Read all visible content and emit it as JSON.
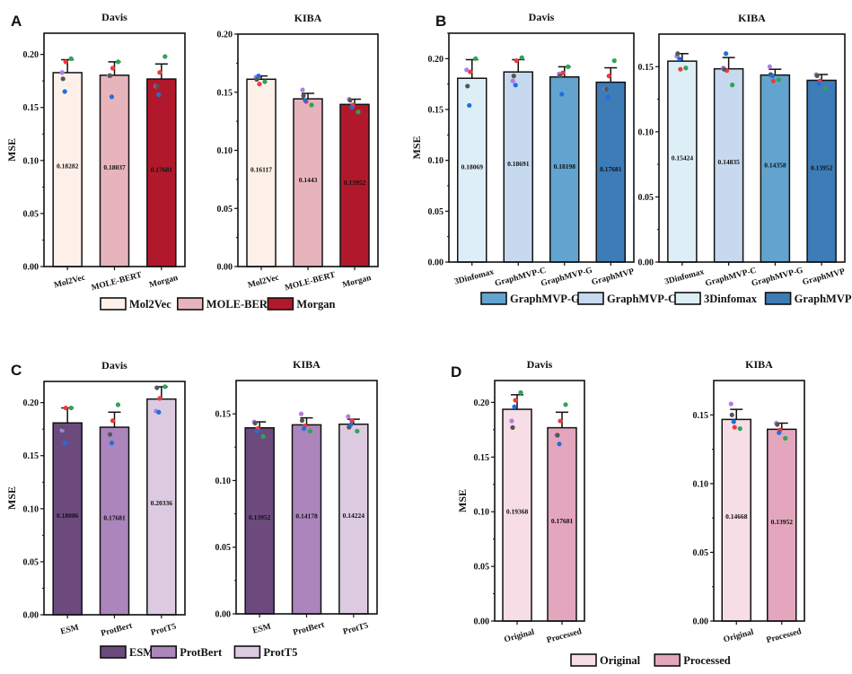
{
  "panel_letters": [
    "A",
    "B",
    "C",
    "D"
  ],
  "point_colors": [
    "#2ea35a",
    "#f03a3a",
    "#b07ee0",
    "#555555",
    "#1f6fe0"
  ],
  "chart_data": [
    {
      "type": "bar",
      "panel": "A",
      "title": "Davis",
      "ylabel": "MSE",
      "ylim": [
        0,
        0.22
      ],
      "yticks": [
        "0.00",
        "0.05",
        "0.10",
        "0.15",
        "0.20"
      ],
      "categories": [
        "Mol2Vec",
        "MOLE-BERT",
        "Morgan"
      ],
      "values": [
        0.18282,
        0.18037,
        0.17681
      ],
      "labels": [
        "0.18282",
        "0.18037",
        "0.17681"
      ],
      "error_upper": [
        0.195,
        0.193,
        0.191
      ],
      "colors": [
        "#fdf0e9",
        "#e8b4bc",
        "#b2182b"
      ],
      "points": [
        [
          0.196,
          0.193,
          0.183,
          0.177,
          0.165
        ],
        [
          0.193,
          0.187,
          0.18,
          0.18,
          0.16
        ],
        [
          0.198,
          0.183,
          0.17,
          0.17,
          0.162
        ]
      ]
    },
    {
      "type": "bar",
      "panel": "A",
      "title": "KIBA",
      "ylabel": "",
      "ylim": [
        0,
        0.2
      ],
      "yticks": [
        "0.00",
        "0.05",
        "0.10",
        "0.15",
        "0.20"
      ],
      "categories": [
        "Mol2Vec",
        "MOLE-BERT",
        "Morgan"
      ],
      "values": [
        0.16117,
        0.1443,
        0.13952
      ],
      "labels": [
        "0.16117",
        "0.1443",
        "0.13952"
      ],
      "error_upper": [
        0.164,
        0.149,
        0.144
      ],
      "colors": [
        "#fdf0e9",
        "#e8b4bc",
        "#b2182b"
      ],
      "points": [
        [
          0.159,
          0.157,
          0.163,
          0.161,
          0.164
        ],
        [
          0.139,
          0.142,
          0.152,
          0.147,
          0.143
        ],
        [
          0.133,
          0.139,
          0.144,
          0.143,
          0.137
        ]
      ]
    },
    {
      "type": "bar",
      "panel": "B",
      "title": "Davis",
      "ylabel": "MSE",
      "ylim": [
        0,
        0.225
      ],
      "yticks": [
        "0.00",
        "0.05",
        "0.10",
        "0.15",
        "0.20"
      ],
      "categories": [
        "3Dinfomax",
        "GraphMVP-C",
        "GraphMVP-G",
        "GraphMVP"
      ],
      "values": [
        0.18069,
        0.18691,
        0.18198,
        0.17681
      ],
      "labels": [
        "0.18069",
        "0.18691",
        "0.18198",
        "0.17681"
      ],
      "error_upper": [
        0.199,
        0.199,
        0.192,
        0.191
      ],
      "colors": [
        "#deeef7",
        "#c6d9ee",
        "#62a4cf",
        "#3d7cb7"
      ],
      "points": [
        [
          0.2,
          0.187,
          0.189,
          0.173,
          0.154
        ],
        [
          0.201,
          0.198,
          0.178,
          0.183,
          0.174
        ],
        [
          0.192,
          0.186,
          0.185,
          0.183,
          0.165
        ],
        [
          0.198,
          0.183,
          0.17,
          0.17,
          0.162
        ]
      ]
    },
    {
      "type": "bar",
      "panel": "B",
      "title": "KIBA",
      "ylabel": "",
      "ylim": [
        0,
        0.175
      ],
      "yticks": [
        "0.00",
        "0.05",
        "0.10",
        "0.15"
      ],
      "categories": [
        "3Dinfomax",
        "GraphMVP-C",
        "GraphMVP-G",
        "GraphMVP"
      ],
      "values": [
        0.15424,
        0.14835,
        0.14358,
        0.13952
      ],
      "labels": [
        "0.15424",
        "0.14835",
        "0.14358",
        "0.13952"
      ],
      "error_upper": [
        0.16,
        0.157,
        0.148,
        0.144
      ],
      "colors": [
        "#deeef7",
        "#c6d9ee",
        "#62a4cf",
        "#3d7cb7"
      ],
      "points": [
        [
          0.149,
          0.148,
          0.158,
          0.16,
          0.156
        ],
        [
          0.136,
          0.147,
          0.149,
          0.148,
          0.16
        ],
        [
          0.14,
          0.139,
          0.15,
          0.144,
          0.143
        ],
        [
          0.133,
          0.139,
          0.144,
          0.143,
          0.137
        ]
      ]
    },
    {
      "type": "bar",
      "panel": "C",
      "title": "Davis",
      "ylabel": "MSE",
      "ylim": [
        0,
        0.22
      ],
      "yticks": [
        "0.00",
        "0.05",
        "0.10",
        "0.15",
        "0.20"
      ],
      "categories": [
        "ESM",
        "ProtBert",
        "ProtT5"
      ],
      "values": [
        0.18086,
        0.17681,
        0.20336
      ],
      "labels": [
        "0.18086",
        "0.17681",
        "0.20336"
      ],
      "error_upper": [
        0.195,
        0.191,
        0.215
      ],
      "colors": [
        "#6c4a7e",
        "#ac85bc",
        "#dccae0"
      ],
      "points": [
        [
          0.195,
          0.195,
          0.174,
          0.177,
          0.162
        ],
        [
          0.198,
          0.183,
          0.17,
          0.17,
          0.162
        ],
        [
          0.215,
          0.204,
          0.192,
          0.214,
          0.191
        ]
      ]
    },
    {
      "type": "bar",
      "panel": "C",
      "title": "KIBA",
      "ylabel": "",
      "ylim": [
        0,
        0.175
      ],
      "yticks": [
        "0.00",
        "0.05",
        "0.10",
        "0.15"
      ],
      "categories": [
        "ESM",
        "ProtBert",
        "ProtT5"
      ],
      "values": [
        0.13952,
        0.14178,
        0.14224
      ],
      "labels": [
        "0.13952",
        "0.14178",
        "0.14224"
      ],
      "error_upper": [
        0.144,
        0.147,
        0.146
      ],
      "colors": [
        "#6c4a7e",
        "#ac85bc",
        "#dccae0"
      ],
      "points": [
        [
          0.133,
          0.139,
          0.144,
          0.143,
          0.137
        ],
        [
          0.137,
          0.141,
          0.15,
          0.145,
          0.139
        ],
        [
          0.137,
          0.145,
          0.148,
          0.14,
          0.142
        ]
      ]
    },
    {
      "type": "bar",
      "panel": "D",
      "title": "Davis",
      "ylabel": "MSE",
      "ylim": [
        0,
        0.22
      ],
      "yticks": [
        "0.00",
        "0.05",
        "0.10",
        "0.15",
        "0.20"
      ],
      "categories": [
        "Original",
        "Processed"
      ],
      "values": [
        0.19368,
        0.17681
      ],
      "labels": [
        "0.19368",
        "0.17681"
      ],
      "error_upper": [
        0.207,
        0.191
      ],
      "colors": [
        "#f7dde6",
        "#e3a6bd"
      ],
      "points": [
        [
          0.209,
          0.202,
          0.183,
          0.177,
          0.196
        ],
        [
          0.198,
          0.183,
          0.17,
          0.17,
          0.162
        ]
      ]
    },
    {
      "type": "bar",
      "panel": "D",
      "title": "KIBA",
      "ylabel": "",
      "ylim": [
        0,
        0.175
      ],
      "yticks": [
        "0.00",
        "0.05",
        "0.10",
        "0.15"
      ],
      "categories": [
        "Original",
        "Processed"
      ],
      "values": [
        0.14668,
        0.13952
      ],
      "labels": [
        "0.14668",
        "0.13952"
      ],
      "error_upper": [
        0.154,
        0.144
      ],
      "colors": [
        "#f7dde6",
        "#e3a6bd"
      ],
      "points": [
        [
          0.14,
          0.141,
          0.158,
          0.15,
          0.145
        ],
        [
          0.133,
          0.139,
          0.144,
          0.143,
          0.137
        ]
      ]
    }
  ],
  "legends": [
    {
      "panel": "A",
      "items": [
        {
          "label": "Mol2Vec",
          "color": "#fdf0e9"
        },
        {
          "label": "MOLE-BERT",
          "color": "#e8b4bc"
        },
        {
          "label": "Morgan",
          "color": "#b2182b"
        }
      ]
    },
    {
      "panel": "B",
      "items": [
        {
          "label": "GraphMVP-G",
          "color": "#62a4cf"
        },
        {
          "label": "GraphMVP-C",
          "color": "#c6d9ee"
        },
        {
          "label": "3Dinfomax",
          "color": "#deeef7"
        },
        {
          "label": "GraphMVP",
          "color": "#3d7cb7"
        }
      ]
    },
    {
      "panel": "C",
      "items": [
        {
          "label": "ESM",
          "color": "#6c4a7e"
        },
        {
          "label": "ProtBert",
          "color": "#ac85bc"
        },
        {
          "label": "ProtT5",
          "color": "#dccae0"
        }
      ]
    },
    {
      "panel": "D",
      "items": [
        {
          "label": "Original",
          "color": "#f7dde6"
        },
        {
          "label": "Processed",
          "color": "#e3a6bd"
        }
      ]
    }
  ]
}
